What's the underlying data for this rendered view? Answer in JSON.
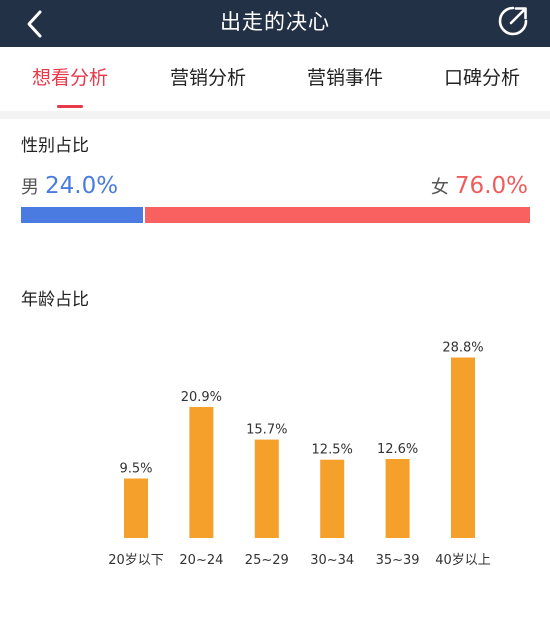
{
  "header": {
    "title": "出走的决心",
    "back_icon": "chevron-left-icon",
    "share_icon": "share-icon"
  },
  "tabs": [
    {
      "label": "想看分析",
      "active": true
    },
    {
      "label": "营销分析",
      "active": false
    },
    {
      "label": "营销事件",
      "active": false
    },
    {
      "label": "口碑分析",
      "active": false
    }
  ],
  "gender": {
    "title": "性别占比",
    "male": {
      "name": "男",
      "value_text": "24.0%",
      "fraction": 0.24,
      "color": "#4a7be0"
    },
    "female": {
      "name": "女",
      "value_text": "76.0%",
      "fraction": 0.76,
      "color": "#f96060"
    }
  },
  "age": {
    "title": "年龄占比"
  },
  "chart_data": {
    "type": "bar",
    "title": "年龄占比",
    "categories": [
      "20岁以下",
      "20~24",
      "25~29",
      "30~34",
      "35~39",
      "40岁以上"
    ],
    "values": [
      9.5,
      20.9,
      15.7,
      12.5,
      12.6,
      28.8
    ],
    "value_labels": [
      "9.5%",
      "20.9%",
      "15.7%",
      "12.5%",
      "12.6%",
      "28.8%"
    ],
    "ylim": [
      0,
      30
    ],
    "grid": false,
    "legend": "none",
    "bar_color": "#f5a02a"
  }
}
